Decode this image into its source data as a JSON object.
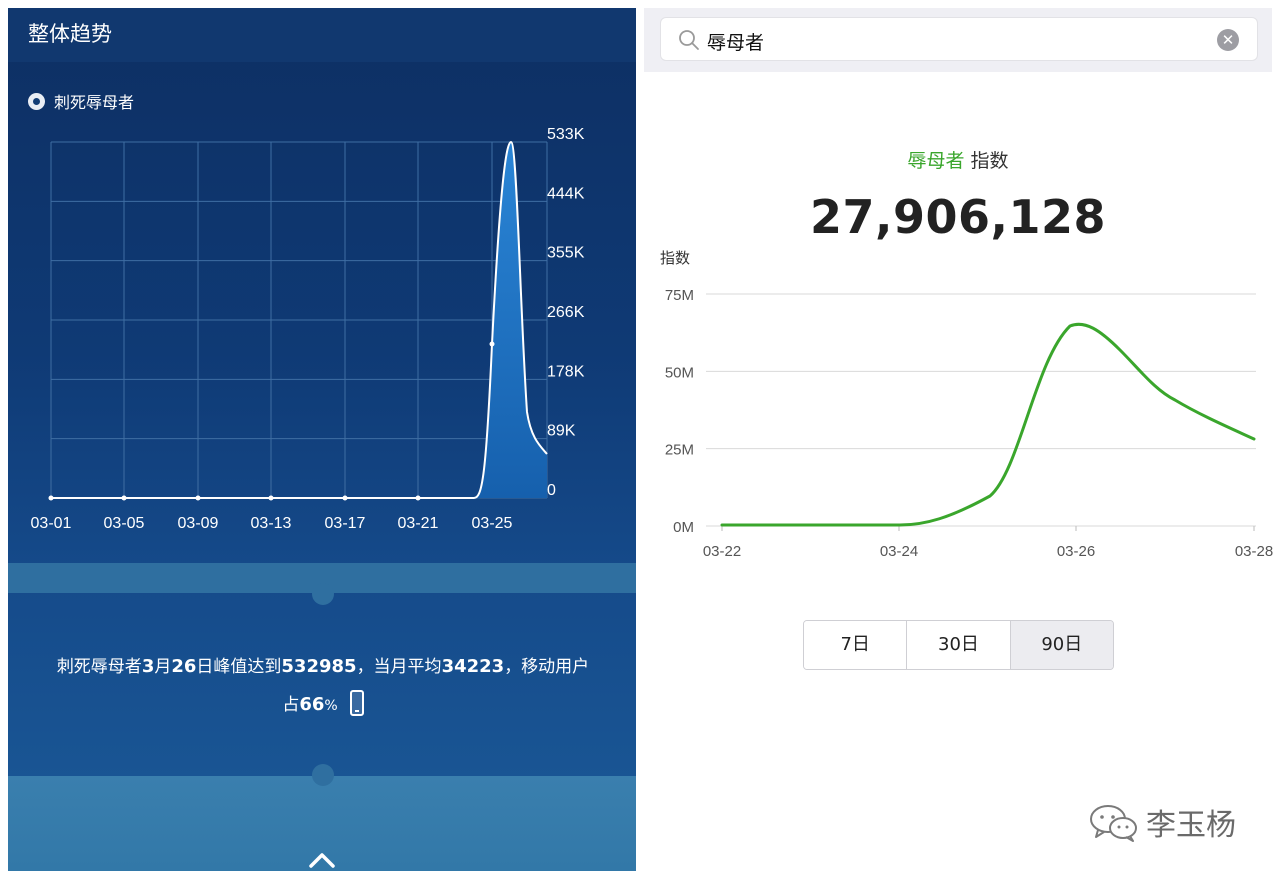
{
  "left_panel": {
    "title": "整体趋势",
    "legend_label": "刺死辱母者",
    "summary": {
      "term": "刺死辱母者",
      "month": "3",
      "month_unit": "月",
      "day": "26",
      "day_unit": "日峰值达到",
      "peak": "532985",
      "avg_text": "，当月平均",
      "avg": "34223",
      "mobile_text": "，移动用户",
      "share_prefix": "占",
      "share_value": "66",
      "share_unit": "%"
    },
    "icons": {
      "device": "phone-icon",
      "expand": "chevron-up-icon",
      "legend": "radio-icon"
    }
  },
  "right_panel": {
    "search": {
      "value": "辱母者",
      "icon": "search-icon",
      "clear_icon": "clear-icon"
    },
    "heading_term": "辱母者",
    "heading_suffix": " 指数",
    "index_value": "27,906,128",
    "range_tabs": [
      {
        "label": "7日",
        "active": false
      },
      {
        "label": "30日",
        "active": false
      },
      {
        "label": "90日",
        "active": true
      }
    ]
  },
  "watermark": {
    "text": "李玉杨",
    "icon": "wechat-icon"
  },
  "colors": {
    "left_bg": "#0f3a75",
    "left_area": "#1f74c4",
    "right_line": "#3aa62c",
    "grid": "#d9d9d9"
  },
  "chart_data": [
    {
      "type": "area",
      "title": "",
      "series": [
        {
          "name": "刺死辱母者",
          "values": [
            0,
            0,
            0,
            0,
            0,
            0,
            0,
            0,
            0,
            0,
            0,
            0,
            0,
            0,
            0,
            0,
            0,
            0,
            0,
            0,
            0,
            0,
            0,
            0,
            0,
            220000,
            532985,
            140000,
            95000,
            50000
          ]
        }
      ],
      "x": [
        "03-01",
        "03-02",
        "03-03",
        "03-04",
        "03-05",
        "03-06",
        "03-07",
        "03-08",
        "03-09",
        "03-10",
        "03-11",
        "03-12",
        "03-13",
        "03-14",
        "03-15",
        "03-16",
        "03-17",
        "03-18",
        "03-19",
        "03-20",
        "03-21",
        "03-22",
        "03-23",
        "03-24",
        "03-24.5",
        "03-25",
        "03-26",
        "03-26.7",
        "03-27",
        "03-28"
      ],
      "x_ticks": [
        "03-01",
        "03-05",
        "03-09",
        "03-13",
        "03-17",
        "03-21",
        "03-25"
      ],
      "y_ticks": [
        "533K",
        "444K",
        "355K",
        "266K",
        "178K",
        "89K",
        "0"
      ],
      "ylim": [
        0,
        533000
      ],
      "grid": true,
      "y_axis_side": "right"
    },
    {
      "type": "line",
      "title": "",
      "ylabel": "指数",
      "series": [
        {
          "name": "辱母者",
          "values": [
            0,
            0,
            0,
            0.02,
            1.5,
            8.5,
            45,
            65,
            60,
            42,
            34,
            28
          ]
        }
      ],
      "x": [
        0,
        0.5,
        1,
        1.5,
        1.75,
        2,
        2.6,
        3,
        3.3,
        4,
        4.5,
        5
      ],
      "x_ticks": [
        "03-22",
        "03-24",
        "03-26",
        "03-28"
      ],
      "y_ticks": [
        "75M",
        "50M",
        "25M",
        "0M"
      ],
      "ylim": [
        0,
        75
      ],
      "grid": true
    }
  ]
}
